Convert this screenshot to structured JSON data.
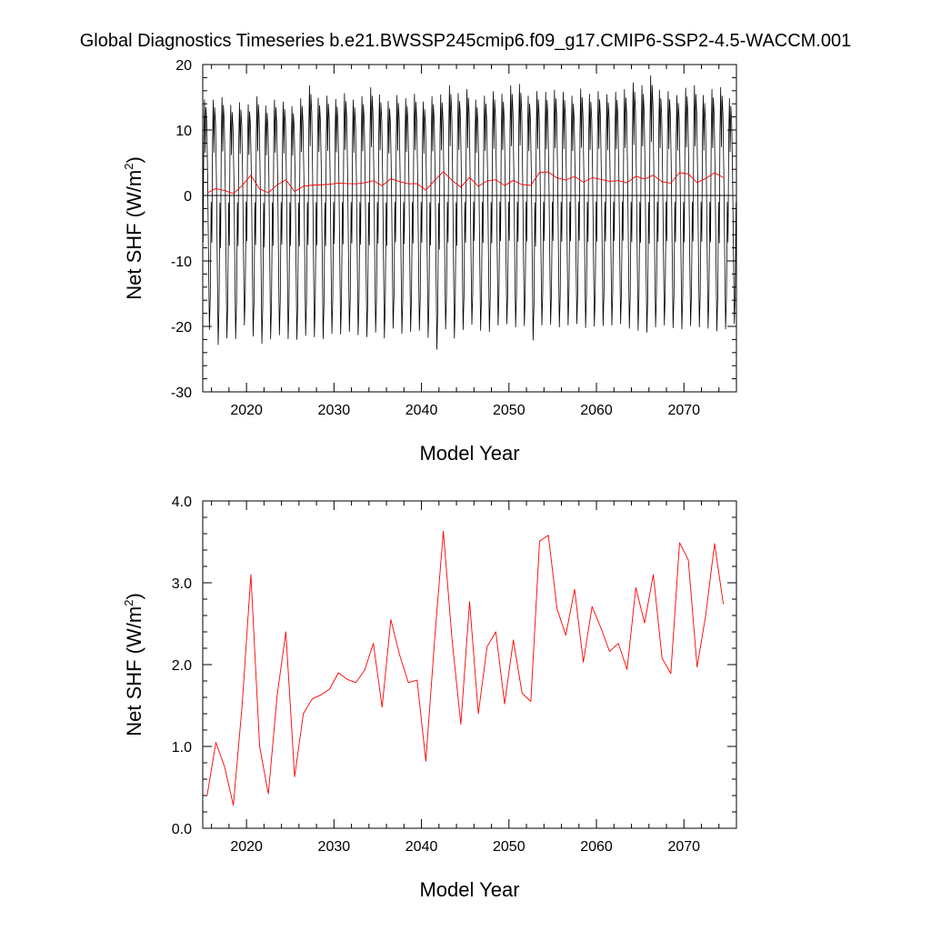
{
  "title": "Global Diagnostics Timeseries b.e21.BWSSP245cmip6.f09_g17.CMIP6-SSP2-4.5-WACCM.001",
  "chart_data": [
    {
      "type": "line",
      "xlabel": "Model Year",
      "ylabel": "Net SHF (W/m",
      "ylabel_sup": "2",
      "ylabel_close": ")",
      "xlim": [
        2015,
        2076
      ],
      "ylim": [
        -30,
        20
      ],
      "x_ticks": [
        2020,
        2030,
        2040,
        2050,
        2060,
        2070
      ],
      "y_ticks": [
        -30,
        -20,
        -10,
        0,
        10,
        20
      ],
      "y_tick_labels": [
        "-30",
        "-20",
        "-10",
        "0",
        "10",
        "20"
      ],
      "zero_line": true,
      "series": [
        {
          "color": "#000000",
          "frequency": "monthly",
          "start_year": 2015,
          "monthly_peaks": [
            14.6,
            14.6,
            15.0,
            13.8,
            14.2,
            13.9,
            15.1,
            13.7,
            14.6,
            14.3,
            13.6,
            14.8,
            16.8,
            14.9,
            15.2,
            14.7,
            15.6,
            14.6,
            15.1,
            16.5,
            15.4,
            14.4,
            15.3,
            14.8,
            15.5,
            14.3,
            15.1,
            15.4,
            16.8,
            15.6,
            16.2,
            14.6,
            15.2,
            15.9,
            15.5,
            16.8,
            17.0,
            15.2,
            15.9,
            15.8,
            16.1,
            15.8,
            15.2,
            16.3,
            15.5,
            15.9,
            15.4,
            15.8,
            16.2,
            17.2,
            16.8,
            18.3,
            16.1,
            15.9,
            15.3,
            16.4,
            16.8,
            15.3,
            16.2,
            16.5,
            14.8
          ],
          "monthly_troughs": [
            -20.5,
            -22.8,
            -21.8,
            -21.9,
            -19.8,
            -21.5,
            -22.6,
            -21.9,
            -21.3,
            -21.9,
            -22.0,
            -21.4,
            -21.6,
            -21.9,
            -21.1,
            -21.2,
            -20.8,
            -21.3,
            -21.6,
            -20.9,
            -21.8,
            -20.3,
            -21.1,
            -20.8,
            -20.6,
            -21.7,
            -23.5,
            -20.4,
            -21.8,
            -20.5,
            -19.7,
            -20.6,
            -20.8,
            -19.8,
            -19.6,
            -20.1,
            -19.9,
            -22.1,
            -19.8,
            -19.7,
            -20.1,
            -19.8,
            -19.6,
            -20.2,
            -20.0,
            -19.9,
            -19.8,
            -19.6,
            -20.3,
            -20.6,
            -20.9,
            -20.1,
            -19.8,
            -20.2,
            -20.4,
            -19.9,
            -20.1,
            -20.3,
            -20.7,
            -20.4,
            -19.6
          ]
        },
        {
          "color": "#ff0000",
          "frequency": "annual",
          "x_start": 2015.5,
          "values": [
            0.4,
            1.05,
            0.75,
            0.28,
            1.5,
            3.1,
            1.0,
            0.42,
            1.62,
            2.4,
            0.63,
            1.4,
            1.58,
            1.63,
            1.7,
            1.9,
            1.82,
            1.78,
            1.93,
            2.26,
            1.48,
            2.55,
            2.12,
            1.78,
            1.81,
            0.82,
            2.3,
            3.63,
            2.3,
            1.27,
            2.77,
            1.4,
            2.22,
            2.4,
            1.52,
            2.3,
            1.65,
            1.55,
            3.51,
            3.58,
            2.68,
            2.36,
            2.92,
            2.03,
            2.71,
            2.45,
            2.16,
            2.26,
            1.94,
            2.94,
            2.51,
            3.1,
            2.08,
            1.89,
            3.49,
            3.28,
            1.97,
            2.61,
            3.48,
            2.74
          ]
        }
      ]
    },
    {
      "type": "line",
      "xlabel": "Model Year",
      "ylabel": "Net SHF (W/m",
      "ylabel_sup": "2",
      "ylabel_close": ")",
      "xlim": [
        2015,
        2076
      ],
      "ylim": [
        0,
        4
      ],
      "x_ticks": [
        2020,
        2030,
        2040,
        2050,
        2060,
        2070
      ],
      "y_ticks": [
        0,
        1,
        2,
        3,
        4
      ],
      "y_tick_labels": [
        "0.0",
        "1.0",
        "2.0",
        "3.0",
        "4.0"
      ],
      "zero_line": false,
      "series": [
        {
          "color": "#ff0000",
          "frequency": "annual",
          "x_start": 2015.5,
          "values": [
            0.4,
            1.05,
            0.75,
            0.28,
            1.5,
            3.1,
            1.0,
            0.42,
            1.62,
            2.4,
            0.63,
            1.4,
            1.58,
            1.63,
            1.7,
            1.9,
            1.82,
            1.78,
            1.93,
            2.26,
            1.48,
            2.55,
            2.12,
            1.78,
            1.81,
            0.82,
            2.3,
            3.63,
            2.3,
            1.27,
            2.77,
            1.4,
            2.22,
            2.4,
            1.52,
            2.3,
            1.65,
            1.55,
            3.51,
            3.58,
            2.68,
            2.36,
            2.92,
            2.03,
            2.71,
            2.45,
            2.16,
            2.26,
            1.94,
            2.94,
            2.51,
            3.1,
            2.08,
            1.89,
            3.49,
            3.28,
            1.97,
            2.61,
            3.48,
            2.74
          ]
        }
      ]
    }
  ]
}
